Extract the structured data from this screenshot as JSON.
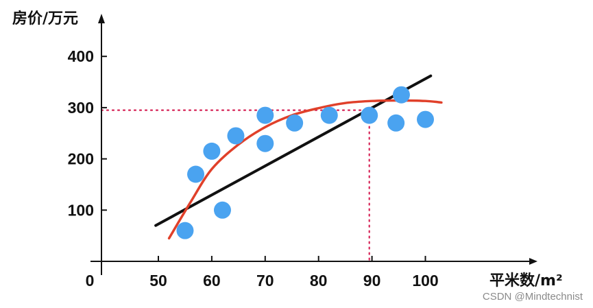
{
  "chart_data": {
    "type": "scatter",
    "title": "",
    "xlabel": "平米数/m²",
    "ylabel": "房价/万元",
    "origin_label": "0",
    "xlim": [
      48,
      105
    ],
    "ylim": [
      0,
      430
    ],
    "x_ticks": [
      50,
      60,
      70,
      80,
      90,
      100
    ],
    "y_ticks": [
      100,
      200,
      300,
      400
    ],
    "grid": false,
    "legend": "none",
    "colors": {
      "points": "#4aa3f0",
      "linear_fit": "#111111",
      "curve_fit": "#e0402a",
      "guide": "#d62255",
      "axis": "#111111"
    },
    "points": [
      {
        "x": 55,
        "y": 60
      },
      {
        "x": 57,
        "y": 170
      },
      {
        "x": 60,
        "y": 215
      },
      {
        "x": 62,
        "y": 100
      },
      {
        "x": 64.5,
        "y": 245
      },
      {
        "x": 70,
        "y": 285
      },
      {
        "x": 70,
        "y": 230
      },
      {
        "x": 75.5,
        "y": 270
      },
      {
        "x": 82,
        "y": 285
      },
      {
        "x": 89.5,
        "y": 285
      },
      {
        "x": 94.5,
        "y": 270
      },
      {
        "x": 95.5,
        "y": 325
      },
      {
        "x": 100,
        "y": 277
      }
    ],
    "linear_fit": {
      "from": [
        49.5,
        70
      ],
      "to": [
        101,
        362
      ]
    },
    "curve_fit": {
      "x": [
        52,
        56,
        60,
        65,
        70,
        75,
        80,
        85,
        90,
        95,
        100,
        103
      ],
      "y": [
        45,
        115,
        180,
        228,
        262,
        285,
        299,
        309,
        313,
        314,
        313,
        310
      ]
    },
    "guide_lines": {
      "x": 89.5,
      "y": 295
    }
  },
  "watermark": "CSDN @Mindtechnist"
}
